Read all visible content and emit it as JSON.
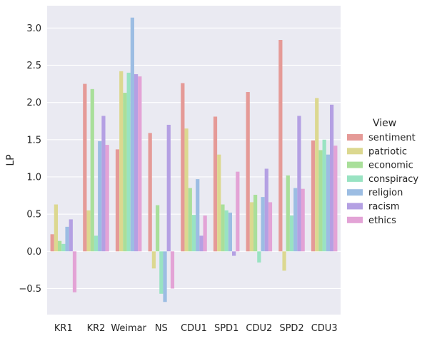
{
  "chart_data": {
    "type": "bar",
    "ylabel": "LP",
    "ylim": [
      -0.85,
      3.3
    ],
    "yticks": [
      -0.5,
      0.0,
      0.5,
      1.0,
      1.5,
      2.0,
      2.5,
      3.0
    ],
    "ytick_labels": [
      "−0.5",
      "0.0",
      "0.5",
      "1.0",
      "1.5",
      "2.0",
      "2.5",
      "3.0"
    ],
    "grid": true,
    "legend_position": "right",
    "legend_title": "View",
    "categories": [
      "KR1",
      "KR2",
      "Weimar",
      "NS",
      "CDU1",
      "SPD1",
      "CDU2",
      "SPD2",
      "CDU3"
    ],
    "series": [
      {
        "name": "sentiment",
        "color": "#e59a97",
        "values": [
          0.23,
          2.25,
          1.37,
          1.59,
          2.26,
          1.81,
          2.14,
          2.84,
          1.49
        ]
      },
      {
        "name": "patriotic",
        "color": "#dcd890",
        "values": [
          0.63,
          0.55,
          2.42,
          -0.23,
          1.65,
          1.3,
          0.66,
          -0.26,
          2.06
        ]
      },
      {
        "name": "economic",
        "color": "#a9df9a",
        "values": [
          0.14,
          2.18,
          2.13,
          0.62,
          0.85,
          0.63,
          0.76,
          1.02,
          1.36
        ]
      },
      {
        "name": "conspiracy",
        "color": "#99e3c2",
        "values": [
          0.1,
          0.21,
          2.4,
          -0.57,
          0.49,
          0.55,
          -0.15,
          0.48,
          1.5
        ]
      },
      {
        "name": "religion",
        "color": "#9cbde3",
        "values": [
          0.33,
          1.48,
          3.14,
          -0.68,
          0.97,
          0.52,
          0.73,
          0.85,
          1.3
        ]
      },
      {
        "name": "racism",
        "color": "#b4a0e3",
        "values": [
          0.43,
          1.82,
          2.38,
          1.7,
          0.21,
          -0.06,
          1.11,
          1.82,
          1.97
        ]
      },
      {
        "name": "ethics",
        "color": "#e3a3d6",
        "values": [
          -0.55,
          1.43,
          2.35,
          -0.5,
          0.48,
          1.07,
          0.66,
          0.84,
          1.42
        ]
      }
    ]
  }
}
